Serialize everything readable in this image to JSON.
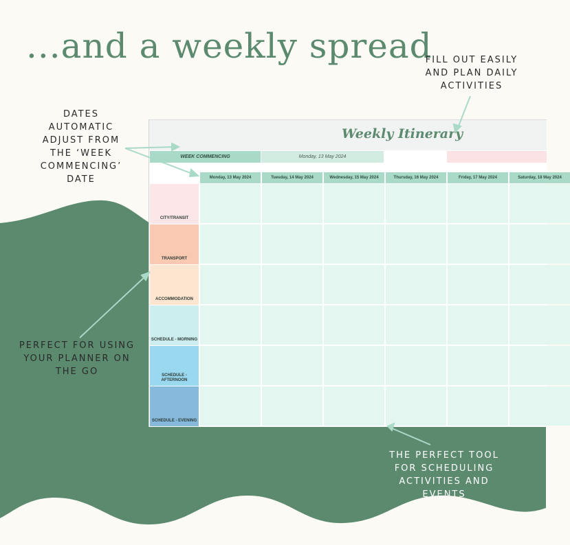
{
  "headline": "...and a weekly spread",
  "callouts": {
    "fill_out": [
      "FILL OUT EASILY",
      "AND PLAN DAILY",
      "ACTIVITIES"
    ],
    "dates": [
      "DATES",
      "AUTOMATIC",
      "ADJUST FROM",
      "THE ‘WEEK",
      "COMMENCING’",
      "DATE"
    ],
    "perfect_for": [
      "PERFECT FOR USING",
      "YOUR PLANNER ON",
      "THE GO"
    ],
    "perfect_tool": [
      "THE PERFECT TOOL",
      "FOR SCHEDULING",
      "ACTIVITIES AND",
      "EVENTS"
    ]
  },
  "sheet": {
    "title": "Weekly Itinerary",
    "week_commencing_label": "WEEK COMMENCING",
    "week_commencing_date": "Monday, 13 May 2024",
    "days": [
      "Monday, 13 May 2024",
      "Tuesday, 14 May 2024",
      "Wednesday, 15 May 2024",
      "Thursday, 16 May 2024",
      "Friday, 17 May 2024",
      "Saturday, 18 May 2024"
    ],
    "rows": [
      {
        "label": "CITY/TRANSIT",
        "color": "#fce6e8"
      },
      {
        "label": "TRANSPORT",
        "color": "#f9c9b2"
      },
      {
        "label": "ACCOMMODATION",
        "color": "#fde5cf"
      },
      {
        "label": "SCHEDULE - MORNING",
        "color": "#cdeeef"
      },
      {
        "label": "SCHEDULE - AFTERNOON",
        "color": "#9ad8ef"
      },
      {
        "label": "SCHEDULE - EVENING",
        "color": "#86b9dc"
      }
    ]
  },
  "colors": {
    "background": "#fbfaf5",
    "wave_green": "#5b8a6e",
    "headline": "#5b8a6e",
    "arrow": "#a9d9c7",
    "cell": "#e3f6ef",
    "header": "#a9d9c7"
  }
}
